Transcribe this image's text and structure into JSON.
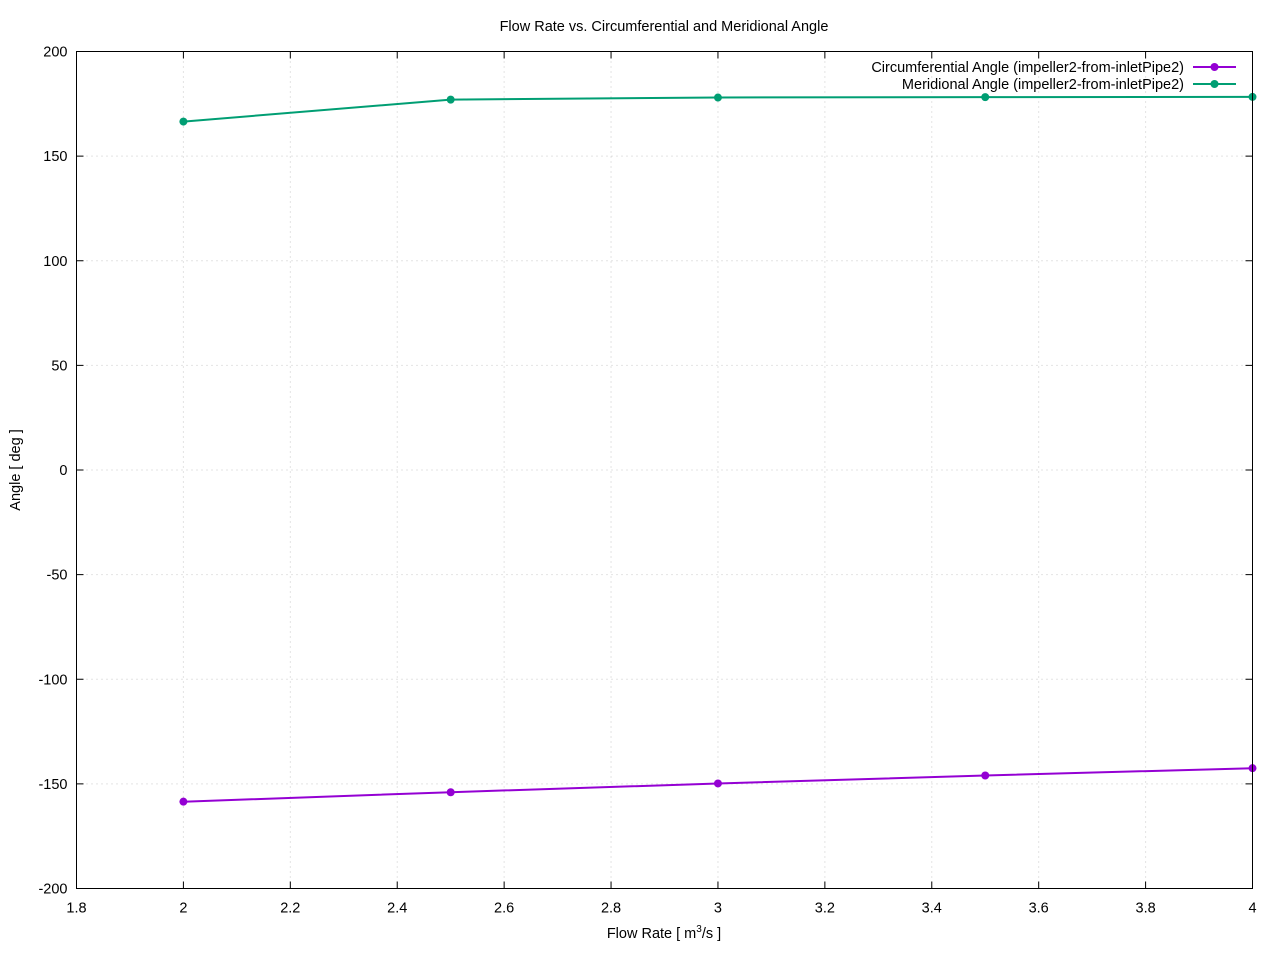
{
  "chart_data": {
    "type": "line",
    "title": "Flow Rate vs. Circumferential and Meridional Angle",
    "xlabel_main": "Flow Rate [ m",
    "xlabel_sup": "3",
    "xlabel_tail": "/s ]",
    "ylabel": "Angle [ deg ]",
    "xlim": [
      1.8,
      4.0
    ],
    "ylim": [
      -200,
      200
    ],
    "xticks": [
      "1.8",
      "2",
      "2.2",
      "2.4",
      "2.6",
      "2.8",
      "3",
      "3.2",
      "3.4",
      "3.6",
      "3.8",
      "4"
    ],
    "yticks": [
      "200",
      "150",
      "100",
      "50",
      "0",
      "-50",
      "-100",
      "-150",
      "-200"
    ],
    "grid": true,
    "legend_position": "top-right",
    "x": [
      2.0,
      2.5,
      3.0,
      3.5,
      4.0
    ],
    "series": [
      {
        "name": "Circumferential Angle (impeller2-from-inletPipe2)",
        "color": "#9400d3",
        "values": [
          -158.5,
          -154.0,
          -149.8,
          -146.0,
          -142.5
        ]
      },
      {
        "name": "Meridional Angle (impeller2-from-inletPipe2)",
        "color": "#009e73",
        "values": [
          166.5,
          177.0,
          178.0,
          178.2,
          178.3
        ]
      }
    ]
  }
}
